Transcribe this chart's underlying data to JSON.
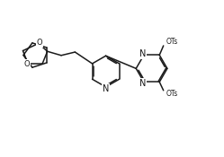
{
  "bg_color": "#ffffff",
  "line_color": "#1a1a1a",
  "line_width": 1.1,
  "font_size": 6.0,
  "figsize": [
    2.49,
    1.75
  ],
  "dpi": 100,
  "xlim": [
    0,
    10
  ],
  "ylim": [
    0,
    7
  ]
}
